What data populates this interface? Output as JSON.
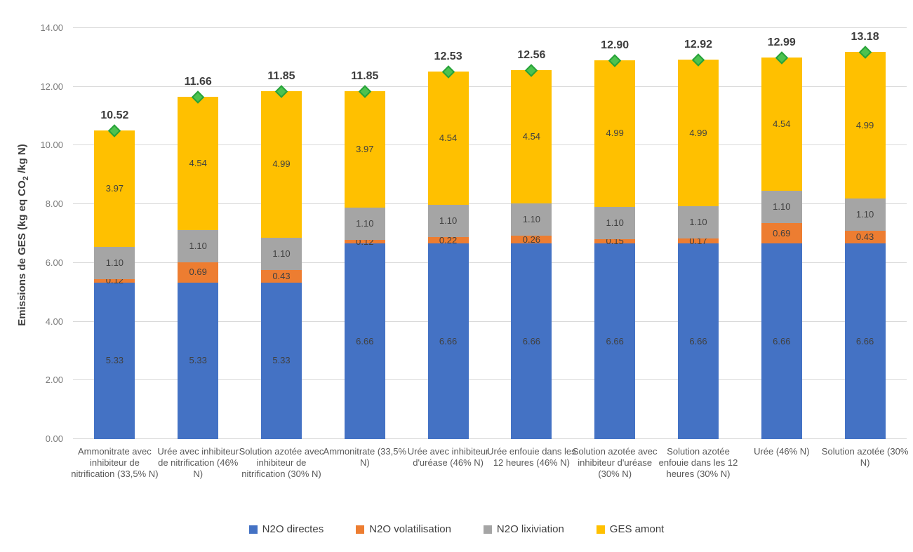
{
  "chart_data": {
    "type": "bar",
    "stacked": true,
    "ylabel": {
      "pre": "Emissions de GES (kg eq CO",
      "sub": "2",
      "post": " /kg N)"
    },
    "ylim": [
      0,
      14
    ],
    "ytick_step": 2,
    "ytick_decimals": 2,
    "grid": true,
    "legend_position": "bottom",
    "categories": [
      "Ammonitrate avec inhibiteur de nitrification (33,5% N)",
      "Urée avec inhibiteur de nitrification (46% N)",
      "Solution azotée avec inhibiteur de nitrification (30% N)",
      "Ammonitrate (33,5% N)",
      "Urée avec inhibiteur d'uréase (46% N)",
      "Urée enfouie dans les 12 heures (46% N)",
      "Solution azotée avec inhibiteur d'uréase (30% N)",
      "Solution azotée enfouie dans les 12 heures (30% N)",
      "Urée (46% N)",
      "Solution azotée (30% N)"
    ],
    "series": [
      {
        "name": "N2O directes",
        "color": "#4472C4",
        "values": [
          5.33,
          5.33,
          5.33,
          6.66,
          6.66,
          6.66,
          6.66,
          6.66,
          6.66,
          6.66
        ]
      },
      {
        "name": "N2O volatilisation",
        "color": "#ED7D31",
        "values": [
          0.12,
          0.69,
          0.43,
          0.12,
          0.22,
          0.26,
          0.15,
          0.17,
          0.69,
          0.43
        ]
      },
      {
        "name": "N2O lixiviation",
        "color": "#A5A5A5",
        "values": [
          1.1,
          1.1,
          1.1,
          1.1,
          1.1,
          1.1,
          1.1,
          1.1,
          1.1,
          1.1
        ]
      },
      {
        "name": "GES amont",
        "color": "#FFC000",
        "values": [
          3.97,
          4.54,
          4.99,
          3.97,
          4.54,
          4.54,
          4.99,
          4.99,
          4.54,
          4.99
        ]
      }
    ],
    "totals": [
      10.52,
      11.66,
      11.85,
      11.85,
      12.53,
      12.56,
      12.9,
      12.92,
      12.99,
      13.18
    ],
    "total_marker": {
      "shape": "diamond",
      "fill": "#4DC24F",
      "stroke": "#28A23B"
    },
    "colors": {
      "background": "#FFFFFF",
      "gridline": "#D9D9D9",
      "tick_label": "#7B7B7B",
      "segment_label": "#404040",
      "total_label": "#3D3D3D",
      "category_label": "#595959",
      "legend_label": "#404040"
    }
  }
}
